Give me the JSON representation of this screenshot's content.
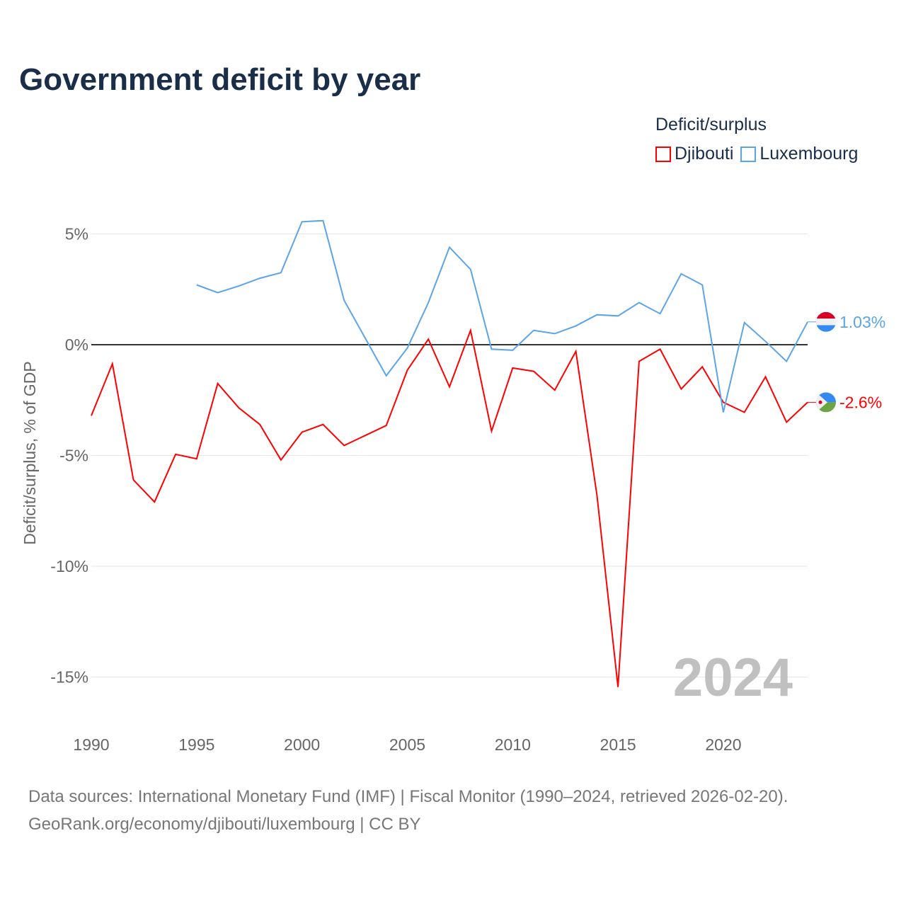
{
  "title": "Government deficit by year",
  "legend": {
    "title": "Deficit/surplus",
    "items": [
      "Djibouti",
      "Luxembourg"
    ]
  },
  "footer": {
    "line1": "Data sources: International Monetary Fund (IMF) | Fiscal Monitor (1990–2024, retrieved 2026-02-20).",
    "line2": "GeoRank.org/economy/djibouti/luxembourg | CC BY"
  },
  "chart_data": {
    "type": "line",
    "title": "Government deficit by year",
    "ylabel": "Deficit/surplus, % of GDP",
    "xlabel": "",
    "xlim": [
      1990,
      2024
    ],
    "ylim": [
      -16,
      6
    ],
    "xticks": [
      1990,
      1995,
      2000,
      2005,
      2010,
      2015,
      2020
    ],
    "yticks": [
      5,
      0,
      -5,
      -10,
      -15
    ],
    "ytick_labels": [
      "5%",
      "0%",
      "-5%",
      "-10%",
      "-15%"
    ],
    "year_watermark": "2024",
    "series": [
      {
        "name": "Djibouti",
        "color": "#ff0000",
        "end_label": "-2.6%",
        "x": [
          1990,
          1991,
          1992,
          1993,
          1994,
          1995,
          1996,
          1997,
          1998,
          1999,
          2000,
          2001,
          2002,
          2003,
          2004,
          2005,
          2006,
          2007,
          2008,
          2009,
          2010,
          2011,
          2012,
          2013,
          2014,
          2015,
          2016,
          2017,
          2018,
          2019,
          2020,
          2021,
          2022,
          2023,
          2024
        ],
        "values": [
          -3.2,
          -0.86,
          -6.1,
          -7.1,
          -4.95,
          -5.15,
          -1.75,
          -2.85,
          -3.6,
          -5.2,
          -3.95,
          -3.6,
          -4.55,
          -4.1,
          -3.65,
          -1.15,
          0.25,
          -1.9,
          0.65,
          -3.9,
          -1.05,
          -1.2,
          -2.05,
          -0.3,
          -6.8,
          -15.45,
          -0.75,
          -0.2,
          -2.0,
          -1.0,
          -2.6,
          -3.05,
          -1.45,
          -3.5,
          -2.6
        ]
      },
      {
        "name": "Luxembourg",
        "color": "#5ba4e8",
        "end_label": "1.03%",
        "x": [
          1995,
          1996,
          1997,
          1998,
          1999,
          2000,
          2001,
          2002,
          2003,
          2004,
          2005,
          2006,
          2007,
          2008,
          2009,
          2010,
          2011,
          2012,
          2013,
          2014,
          2015,
          2016,
          2017,
          2018,
          2019,
          2020,
          2021,
          2022,
          2023,
          2024
        ],
        "values": [
          2.7,
          2.35,
          2.65,
          3.0,
          3.25,
          5.55,
          5.6,
          2.0,
          0.3,
          -1.4,
          -0.15,
          1.9,
          4.4,
          3.4,
          -0.2,
          -0.25,
          0.65,
          0.5,
          0.85,
          1.35,
          1.3,
          1.9,
          1.4,
          3.2,
          2.7,
          -3.05,
          1.0,
          0.15,
          -0.75,
          1.03
        ]
      }
    ]
  }
}
